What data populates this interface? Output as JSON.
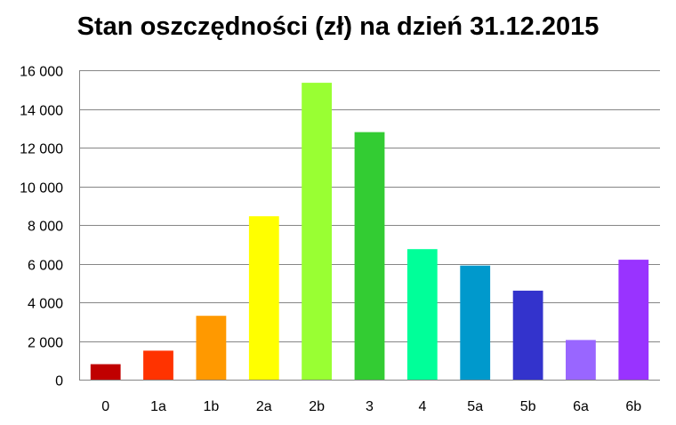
{
  "chart_data": {
    "type": "bar",
    "title": "Stan oszczędności (zł) na dzień 31.12.2015",
    "xlabel": "",
    "ylabel": "",
    "categories": [
      "0",
      "1a",
      "1b",
      "2a",
      "2b",
      "3",
      "4",
      "5a",
      "5b",
      "6a",
      "6b"
    ],
    "values": [
      800,
      1500,
      3300,
      8450,
      15350,
      12800,
      6750,
      5900,
      4600,
      2050,
      6200
    ],
    "colors": [
      "#c00000",
      "#ff3300",
      "#ff9900",
      "#ffff00",
      "#99ff33",
      "#33cc33",
      "#00ff99",
      "#0099cc",
      "#3333cc",
      "#9966ff",
      "#9933ff"
    ],
    "ylim": [
      0,
      16000
    ],
    "yticks": [
      0,
      2000,
      4000,
      6000,
      8000,
      10000,
      12000,
      14000,
      16000
    ],
    "ytick_labels": [
      "0",
      "2 000",
      "4 000",
      "6 000",
      "8 000",
      "10 000",
      "12 000",
      "14 000",
      "16 000"
    ],
    "grid": true,
    "legend": "none"
  }
}
